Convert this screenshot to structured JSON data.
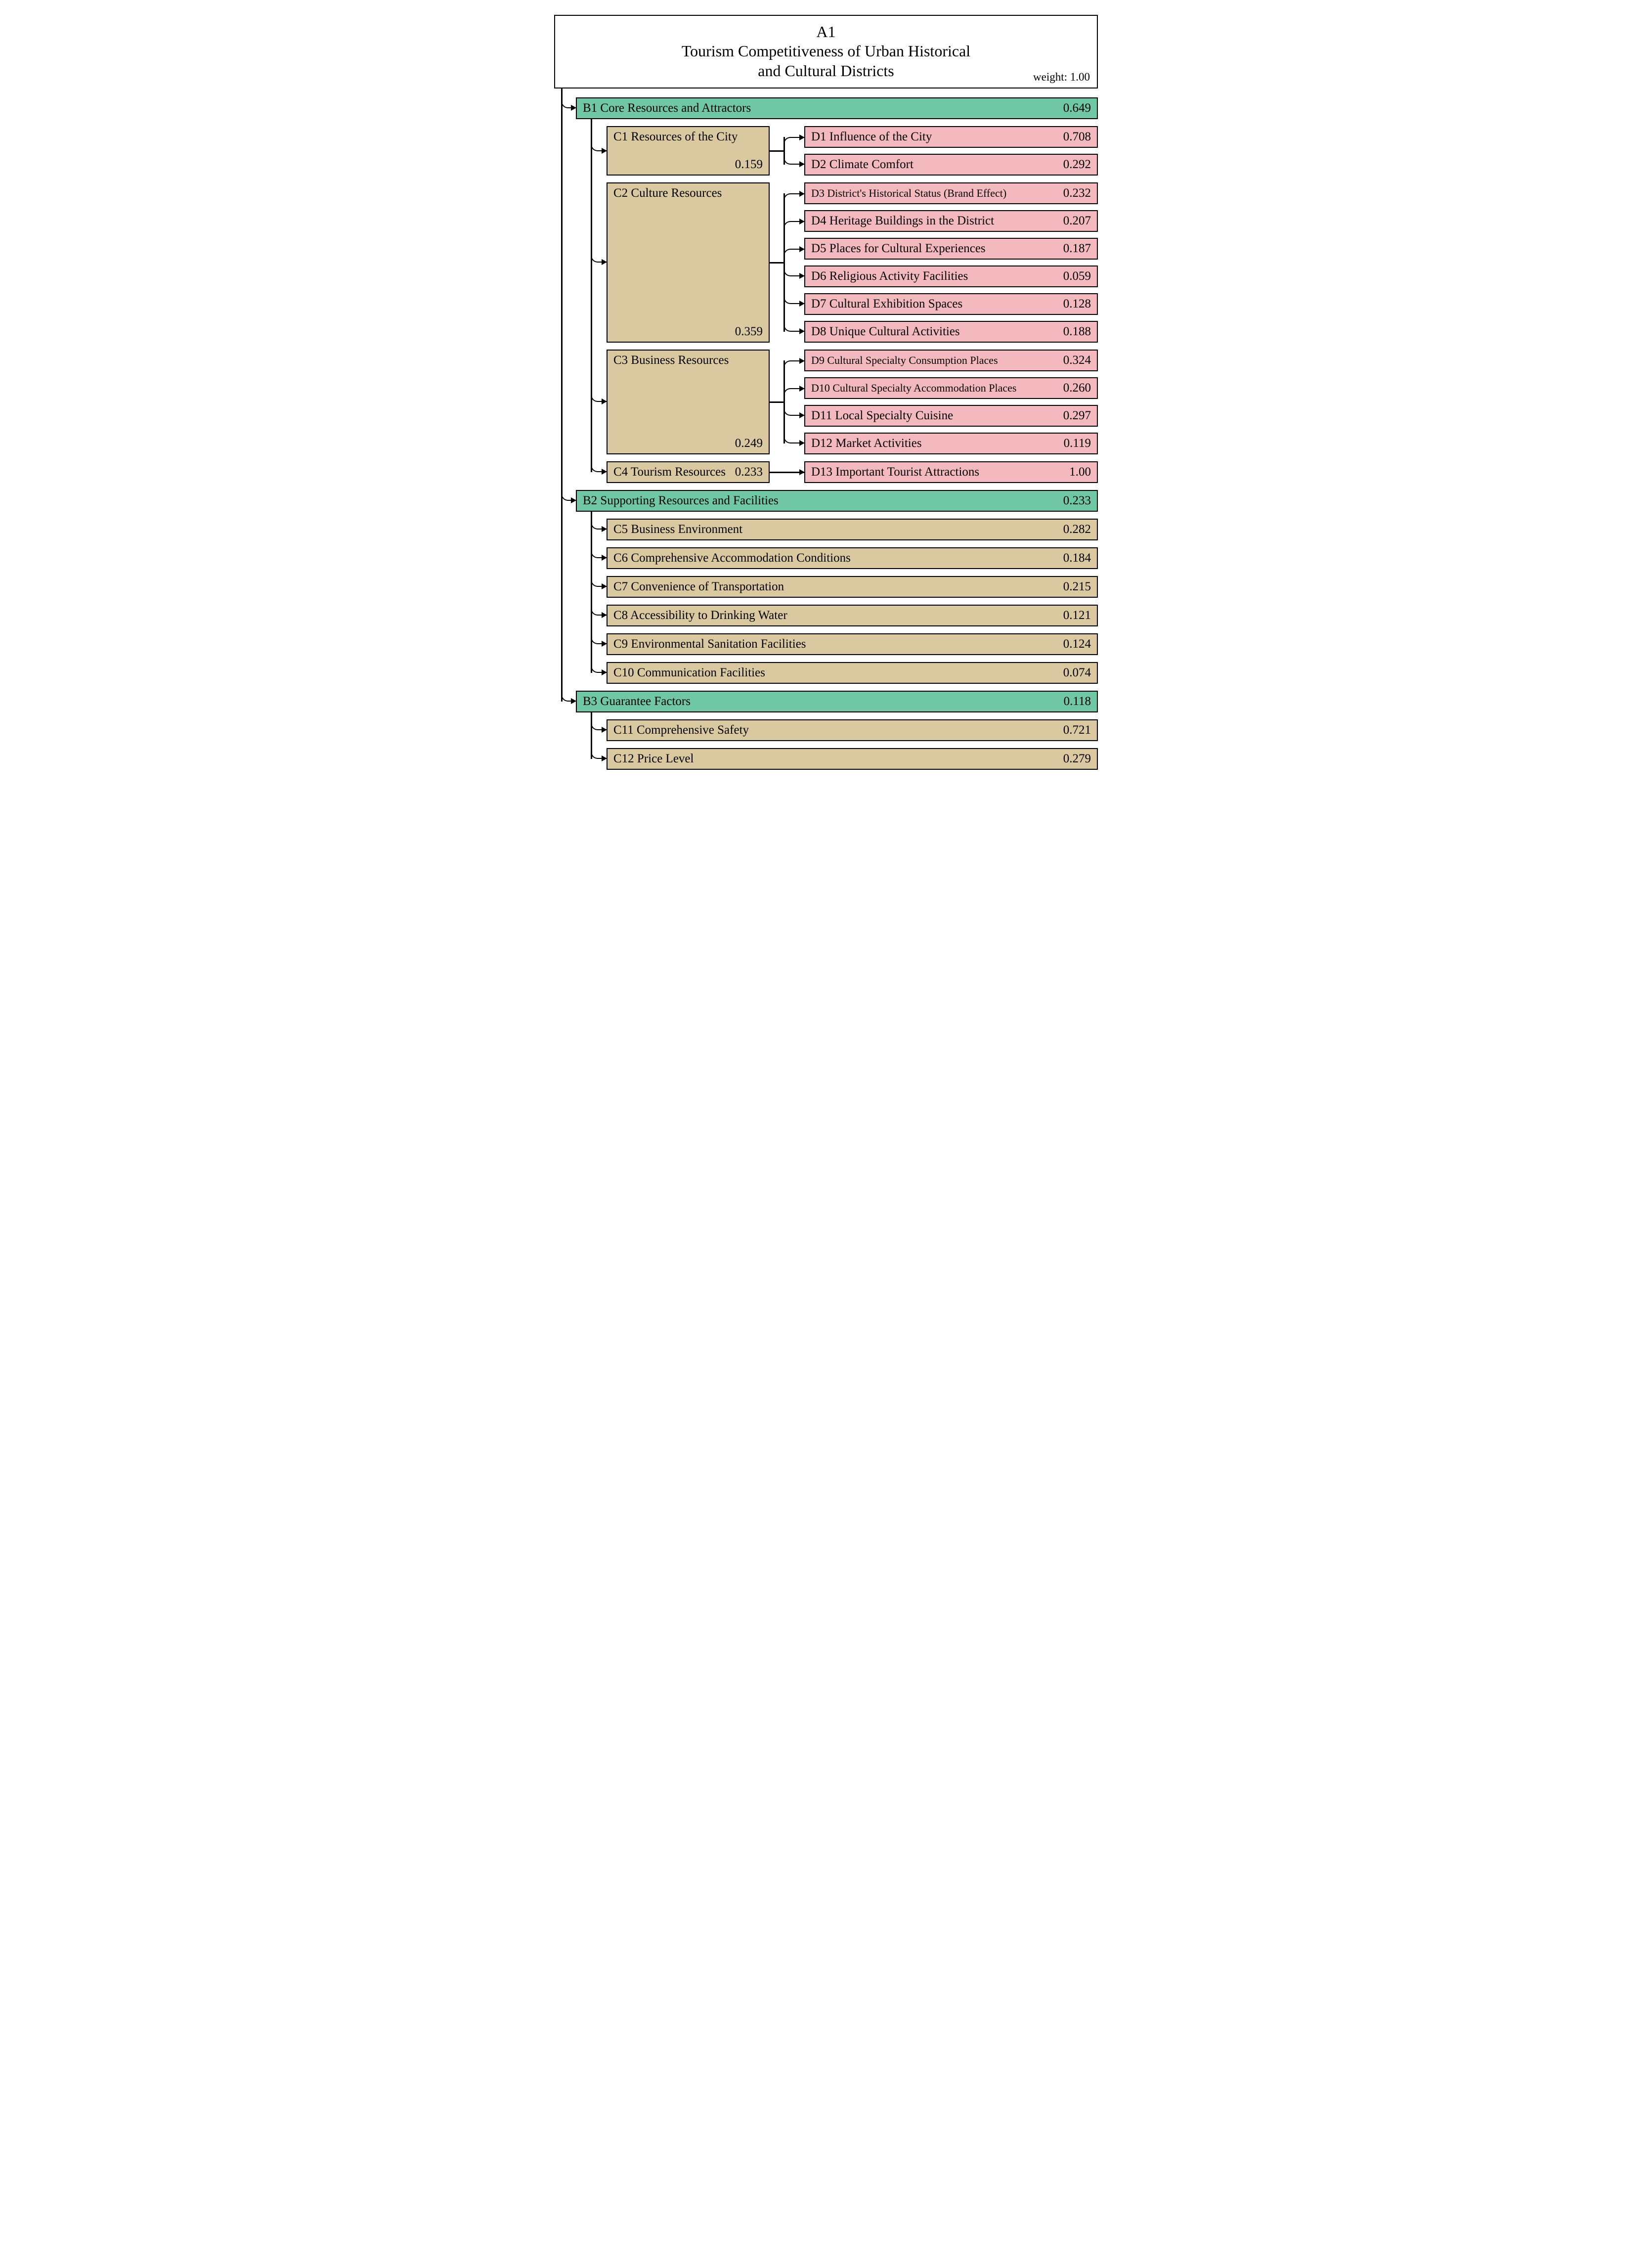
{
  "colors": {
    "b_fill": "#6fc7a6",
    "c_fill": "#dac8a0",
    "d_fill": "#f3b9bf",
    "border": "#000000",
    "white": "#ffffff"
  },
  "root": {
    "code": "A1",
    "title_line1": "Tourism Competitiveness of Urban Historical",
    "title_line2": "and Cultural Districts",
    "weight_label": "weight: 1.00"
  },
  "b1": {
    "label": "B1 Core Resources and Attractors",
    "weight": "0.649"
  },
  "b2": {
    "label": "B2 Supporting Resources and Facilities",
    "weight": "0.233"
  },
  "b3": {
    "label": "B3 Guarantee Factors",
    "weight": "0.118"
  },
  "c1": {
    "label": "C1 Resources of the City",
    "weight": "0.159"
  },
  "c2": {
    "label": "C2 Culture Resources",
    "weight": "0.359"
  },
  "c3": {
    "label": "C3 Business Resources",
    "weight": "0.249"
  },
  "c4": {
    "label": "C4 Tourism Resources",
    "weight": "0.233"
  },
  "c5": {
    "label": "C5 Business Environment",
    "weight": "0.282"
  },
  "c6": {
    "label": "C6 Comprehensive Accommodation Conditions",
    "weight": "0.184"
  },
  "c7": {
    "label": "C7 Convenience of Transportation",
    "weight": "0.215"
  },
  "c8": {
    "label": "C8 Accessibility to Drinking Water",
    "weight": "0.121"
  },
  "c9": {
    "label": "C9 Environmental Sanitation Facilities",
    "weight": "0.124"
  },
  "c10": {
    "label": "C10 Communication Facilities",
    "weight": "0.074"
  },
  "c11": {
    "label": "C11 Comprehensive Safety",
    "weight": "0.721"
  },
  "c12": {
    "label": "C12 Price Level",
    "weight": "0.279"
  },
  "d1": {
    "label": "D1 Influence of the City",
    "weight": "0.708"
  },
  "d2": {
    "label": "D2 Climate Comfort",
    "weight": "0.292"
  },
  "d3": {
    "label": "D3 District's Historical Status (Brand Effect)",
    "weight": "0.232"
  },
  "d4": {
    "label": "D4 Heritage Buildings in the District",
    "weight": "0.207"
  },
  "d5": {
    "label": "D5  Places for Cultural Experiences",
    "weight": "0.187"
  },
  "d6": {
    "label": "D6 Religious Activity Facilities",
    "weight": "0.059"
  },
  "d7": {
    "label": "D7  Cultural Exhibition Spaces",
    "weight": "0.128"
  },
  "d8": {
    "label": "D8 Unique Cultural Activities",
    "weight": "0.188"
  },
  "d9": {
    "label": "D9  Cultural Specialty Consumption Places",
    "weight": "0.324"
  },
  "d10": {
    "label": "D10 Cultural Specialty Accommodation Places",
    "weight": "0.260"
  },
  "d11": {
    "label": "D11 Local Specialty Cuisine",
    "weight": "0.297"
  },
  "d12": {
    "label": "D12 Market Activities",
    "weight": "0.119"
  },
  "d13": {
    "label": "D13 Important Tourist Attractions",
    "weight": "1.00"
  }
}
